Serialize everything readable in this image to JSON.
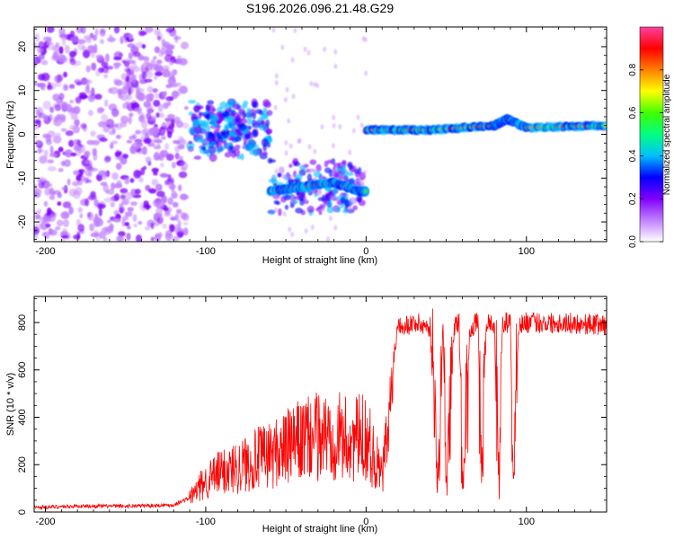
{
  "chart_data": [
    {
      "type": "heatmap",
      "title": "S196.2026.096.21.48.G29",
      "xlabel": "Height of straight line (km)",
      "ylabel": "Frequency (Hz)",
      "xlim": [
        -207,
        150
      ],
      "ylim": [
        -24.5,
        24.5
      ],
      "xticks": [
        -200,
        -100,
        0,
        100
      ],
      "xtick_labels": [
        "-200",
        "-100",
        "0",
        "100"
      ],
      "yticks": [
        -20,
        -10,
        0,
        10,
        20
      ],
      "ytick_labels": [
        "-20",
        "-10",
        "0",
        "10",
        "20"
      ],
      "colorbar": {
        "label": "Normalized spectral amplitude",
        "range": [
          0,
          1
        ],
        "ticks": [
          0.0,
          0.2,
          0.4,
          0.6,
          0.8
        ],
        "tick_labels": [
          "0.0",
          "0.2",
          "0.4",
          "0.6",
          "0.8"
        ],
        "colormap": [
          "#ffffff",
          "#c080ff",
          "#8000ff",
          "#0000ff",
          "#00c0ff",
          "#00ff80",
          "#40ff00",
          "#ffff00",
          "#ff8000",
          "#ff0000",
          "#ff40a0"
        ]
      },
      "ridge": [
        {
          "x": -60,
          "freq": -13
        },
        {
          "x": -40,
          "freq": -12
        },
        {
          "x": -20,
          "freq": -11
        },
        {
          "x": -5,
          "freq": -13
        },
        {
          "x": 0,
          "freq": -13
        },
        {
          "x": 0,
          "freq": 1
        },
        {
          "x": 40,
          "freq": 1
        },
        {
          "x": 80,
          "freq": 2
        },
        {
          "x": 88,
          "freq": 3.5
        },
        {
          "x": 100,
          "freq": 1.5
        },
        {
          "x": 150,
          "freq": 2
        }
      ]
    },
    {
      "type": "line",
      "title": "",
      "xlabel": "Height of straight line (km)",
      "ylabel": "SNR (10 * v/v)",
      "xlim": [
        -207,
        150
      ],
      "ylim": [
        0,
        910
      ],
      "xticks": [
        -200,
        -100,
        0,
        100
      ],
      "xtick_labels": [
        "-200",
        "-100",
        "0",
        "100"
      ],
      "yticks": [
        0,
        200,
        400,
        600,
        800
      ],
      "ytick_labels": [
        "0",
        "200",
        "400",
        "600",
        "800"
      ],
      "series": [
        {
          "name": "SNR",
          "color": "#ff0000",
          "x": [
            -207,
            -180,
            -150,
            -120,
            -110,
            -100,
            -90,
            -80,
            -70,
            -60,
            -50,
            -40,
            -30,
            -20,
            -10,
            0,
            10,
            15,
            17,
            20,
            25,
            30,
            40,
            45,
            48,
            50,
            55,
            58,
            60,
            65,
            70,
            72,
            75,
            80,
            83,
            85,
            90,
            92,
            95,
            100,
            120,
            150
          ],
          "values": [
            20,
            25,
            25,
            30,
            60,
            130,
            170,
            190,
            220,
            240,
            270,
            300,
            320,
            330,
            300,
            320,
            150,
            400,
            640,
            800,
            790,
            800,
            780,
            120,
            800,
            100,
            790,
            800,
            130,
            780,
            800,
            120,
            800,
            790,
            110,
            800,
            800,
            120,
            790,
            800,
            800,
            790
          ]
        }
      ]
    }
  ]
}
